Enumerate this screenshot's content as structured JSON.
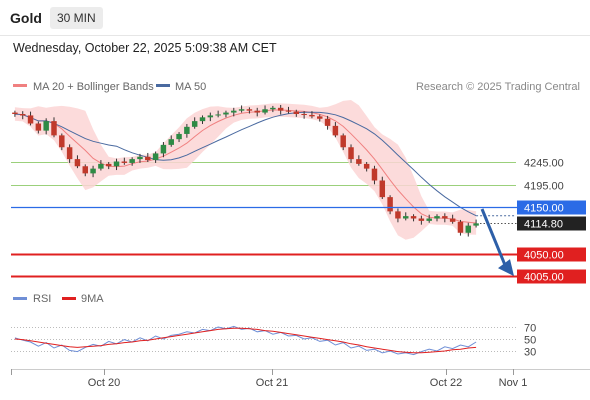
{
  "header": {
    "title": "Gold",
    "interval": "30 MIN",
    "datetime": "Wednesday, October 22, 2025 5:09:38 AM CET"
  },
  "legend": {
    "ma20": "MA 20 + Bollinger Bands",
    "ma50": "MA 50",
    "credit": "Research © 2025 Trading Central",
    "rsi": "RSI",
    "rsi_ma": "9MA"
  },
  "colors": {
    "candle_up": "#2e8b45",
    "candle_down": "#c0392b",
    "band_fill": "#fcd5d5",
    "ma20": "#f08080",
    "ma50": "#4a6aa0",
    "blue_line": "#2b6be6",
    "red_line": "#e02020",
    "green_line": "#9bd07b",
    "arrow": "#2d5fa8",
    "rsi_line": "#6f8fd6",
    "rsi_ma_line": "#e02020"
  },
  "chart_data": {
    "type": "candlestick",
    "ylim": [
      3985,
      4385
    ],
    "x_labels": [
      "Oct 20",
      "Oct 21",
      "Oct 22",
      "Nov 1"
    ],
    "levels": [
      {
        "label": "4245.00",
        "value": 4245,
        "style": "green"
      },
      {
        "label": "4195.00",
        "value": 4195,
        "style": "green"
      },
      {
        "label": "4150.00",
        "value": 4150,
        "style": "blue"
      },
      {
        "label": "4114.80",
        "value": 4114.8,
        "style": "current"
      },
      {
        "label": "4050.00",
        "value": 4050,
        "style": "red"
      },
      {
        "label": "4005.00",
        "value": 4005,
        "style": "red"
      }
    ],
    "close_path": [
      4345,
      4342,
      4325,
      4310,
      4330,
      4300,
      4275,
      4250,
      4235,
      4220,
      4230,
      4240,
      4235,
      4245,
      4242,
      4250,
      4255,
      4248,
      4262,
      4280,
      4292,
      4303,
      4318,
      4330,
      4338,
      4342,
      4344,
      4348,
      4352,
      4355,
      4352,
      4348,
      4355,
      4358,
      4352,
      4350,
      4345,
      4343,
      4340,
      4335,
      4320,
      4300,
      4275,
      4250,
      4240,
      4230,
      4205,
      4170,
      4140,
      4125,
      4130,
      4125,
      4120,
      4125,
      4130,
      4125,
      4118,
      4095,
      4110,
      4114.8
    ],
    "rsi": {
      "levels": [
        70,
        50,
        30
      ],
      "level_labels": [
        "70",
        "50",
        "30"
      ],
      "ylim": [
        15,
        85
      ],
      "values": [
        52,
        48,
        45,
        38,
        44,
        35,
        40,
        31,
        29,
        36,
        41,
        38,
        46,
        42,
        49,
        45,
        52,
        47,
        55,
        50,
        56,
        58,
        62,
        60,
        66,
        64,
        70,
        67,
        71,
        66,
        68,
        62,
        64,
        58,
        61,
        55,
        56,
        50,
        52,
        46,
        48,
        40,
        44,
        35,
        38,
        31,
        33,
        27,
        30,
        25,
        27,
        24,
        29,
        33,
        30,
        37,
        34,
        40,
        37,
        45
      ],
      "ma_values": [
        50,
        49,
        47,
        45,
        43,
        41,
        39,
        37,
        36,
        37,
        38,
        39,
        41,
        42,
        44,
        45,
        47,
        48,
        50,
        52,
        54,
        56,
        58,
        60,
        62,
        64,
        66,
        67,
        68,
        68,
        67,
        66,
        64,
        63,
        61,
        59,
        57,
        55,
        53,
        51,
        49,
        47,
        45,
        42,
        40,
        37,
        35,
        33,
        31,
        29,
        28,
        27,
        27,
        28,
        29,
        30,
        32,
        33,
        35,
        36
      ]
    }
  }
}
